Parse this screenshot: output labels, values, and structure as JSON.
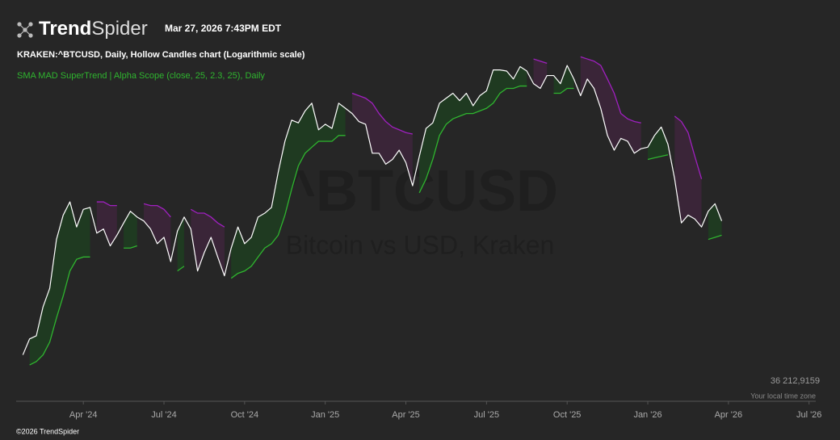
{
  "header": {
    "brand_bold": "Trend",
    "brand_light": "Spider",
    "timestamp": "Mar 27, 2026 7:43PM EDT"
  },
  "footer": {
    "copyright": "©2026 TrendSpider"
  },
  "chart_data": {
    "type": "line",
    "title": "KRAKEN:^BTCUSD, Daily, Hollow Candles chart (Logarithmic scale)",
    "watermark": {
      "symbol": "^BTCUSD",
      "name": "Bitcoin vs USD, Kraken"
    },
    "time_zone_note": "Your local time zone",
    "log_scale": true,
    "color": "#ffffff",
    "xlim": [
      0.5,
      30.25
    ],
    "xticks": [
      {
        "value": 3,
        "label": "Apr '24"
      },
      {
        "value": 6,
        "label": "Jul '24"
      },
      {
        "value": 9,
        "label": "Oct '24"
      },
      {
        "value": 12,
        "label": "Jan '25"
      },
      {
        "value": 15,
        "label": "Apr '25"
      },
      {
        "value": 18,
        "label": "Jul '25"
      },
      {
        "value": 21,
        "label": "Oct '25"
      },
      {
        "value": 24,
        "label": "Jan '26"
      },
      {
        "value": 27,
        "label": "Apr '26"
      },
      {
        "value": 30,
        "label": "Jul '26"
      }
    ],
    "ylim": [
      36212.9159,
      130000
    ],
    "yticks": [
      {
        "value": 36212.9159,
        "label": "36 212,9159"
      }
    ],
    "x": [
      0.75,
      1,
      1.25,
      1.5,
      1.75,
      2,
      2.25,
      2.5,
      2.75,
      3,
      3.25,
      3.5,
      3.75,
      4,
      4.25,
      4.5,
      4.75,
      5,
      5.25,
      5.5,
      5.75,
      6,
      6.25,
      6.5,
      6.75,
      7,
      7.25,
      7.5,
      7.75,
      8,
      8.25,
      8.5,
      8.75,
      9,
      9.25,
      9.5,
      9.75,
      10,
      10.25,
      10.5,
      10.75,
      11,
      11.25,
      11.5,
      11.75,
      12,
      12.25,
      12.5,
      12.75,
      13,
      13.25,
      13.5,
      13.75,
      14,
      14.25,
      14.5,
      14.75,
      15,
      15.25,
      15.5,
      15.75,
      16,
      16.25,
      16.5,
      16.75,
      17,
      17.25,
      17.5,
      17.75,
      18,
      18.25,
      18.5,
      18.75,
      19,
      19.25,
      19.5,
      19.75,
      20,
      20.25,
      20.5,
      20.75,
      21,
      21.25,
      21.5,
      21.75,
      22,
      22.25,
      22.5,
      22.75,
      23,
      23.25,
      23.5,
      23.75,
      24,
      24.25,
      24.5,
      24.75,
      25,
      25.25,
      25.5,
      25.75,
      26,
      26.25,
      26.5,
      26.75
    ],
    "values": [
      40000,
      42500,
      43000,
      48000,
      51500,
      62000,
      68000,
      71500,
      65000,
      69500,
      70000,
      63500,
      64500,
      60500,
      63000,
      66000,
      69000,
      67500,
      66500,
      64500,
      61000,
      62500,
      57000,
      64000,
      67500,
      64500,
      55000,
      59000,
      62500,
      58000,
      54000,
      60000,
      65000,
      61000,
      62500,
      67500,
      68500,
      70000,
      80000,
      90000,
      97500,
      96500,
      101000,
      104000,
      94000,
      96000,
      94500,
      104000,
      102000,
      100000,
      97000,
      96000,
      86000,
      86000,
      82500,
      84000,
      87000,
      83000,
      76000,
      85000,
      94500,
      96500,
      104000,
      106000,
      108000,
      105000,
      108000,
      103000,
      107000,
      109000,
      118000,
      118000,
      117500,
      114000,
      119500,
      117500,
      112000,
      110000,
      115500,
      115500,
      112000,
      120000,
      114000,
      107000,
      114000,
      110000,
      102000,
      92000,
      87000,
      91000,
      90000,
      86000,
      87500,
      88000,
      92000,
      95000,
      89000,
      78000,
      66000,
      68000,
      67000,
      65000,
      69000,
      71000,
      66500
    ],
    "supertrend": {
      "label": "SMA MAD SuperTrend | Alpha Scope (close, 25, 2.3, 25), Daily",
      "up": {
        "color": "#2fb52f",
        "fill": "#1f3a21",
        "values": [
          null,
          38500,
          39000,
          40000,
          42000,
          46000,
          50000,
          55000,
          57500,
          58000,
          58000,
          null,
          null,
          null,
          null,
          60000,
          60000,
          60500,
          null,
          null,
          null,
          null,
          null,
          55000,
          56000,
          null,
          null,
          null,
          null,
          null,
          null,
          53500,
          54500,
          55000,
          56000,
          58000,
          60000,
          61000,
          63000,
          68000,
          75000,
          82000,
          86000,
          88000,
          90000,
          90000,
          90000,
          92000,
          92000,
          null,
          null,
          null,
          null,
          null,
          null,
          null,
          null,
          null,
          null,
          74000,
          78000,
          84000,
          92000,
          96000,
          98000,
          99000,
          100000,
          100000,
          101000,
          102000,
          104000,
          108000,
          110000,
          110000,
          111000,
          111000,
          null,
          null,
          null,
          108000,
          108000,
          110000,
          110000,
          null,
          null,
          null,
          null,
          null,
          null,
          null,
          null,
          null,
          null,
          84000,
          84500,
          85000,
          85500,
          null,
          null,
          null,
          null,
          null,
          62000,
          62500,
          63000
        ]
      },
      "down": {
        "color": "#a020c0",
        "fill": "#3a2538",
        "values": [
          null,
          null,
          null,
          null,
          null,
          null,
          null,
          null,
          null,
          null,
          null,
          71500,
          71500,
          70500,
          70500,
          null,
          null,
          null,
          71000,
          70500,
          70500,
          69500,
          67500,
          null,
          null,
          69500,
          68500,
          68500,
          67500,
          66000,
          65000,
          null,
          null,
          null,
          null,
          null,
          null,
          null,
          null,
          null,
          null,
          null,
          null,
          null,
          null,
          null,
          null,
          null,
          null,
          108000,
          107000,
          106000,
          104000,
          100000,
          97000,
          95000,
          94000,
          93000,
          92500,
          null,
          null,
          null,
          null,
          null,
          null,
          null,
          null,
          null,
          null,
          null,
          null,
          null,
          null,
          null,
          null,
          null,
          123000,
          122000,
          121000,
          null,
          null,
          null,
          null,
          124000,
          123000,
          122000,
          120000,
          114000,
          108000,
          100000,
          98000,
          97000,
          96500,
          null,
          null,
          null,
          null,
          99000,
          97000,
          93000,
          85000,
          78000,
          null,
          null,
          null
        ]
      }
    }
  }
}
